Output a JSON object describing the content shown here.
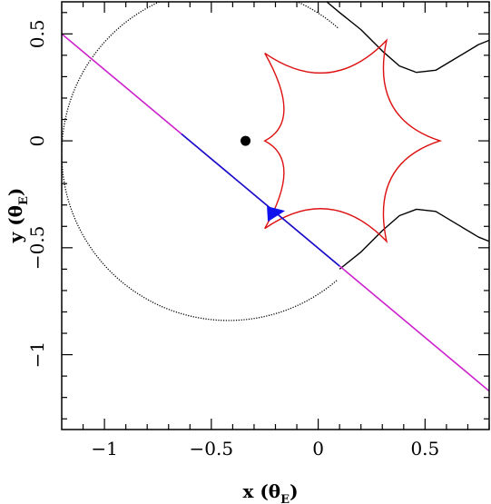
{
  "chart_data": {
    "type": "line",
    "xlim": [
      -1.2,
      0.8
    ],
    "ylim": [
      -1.35,
      0.65
    ],
    "x_ticks": [
      {
        "value": -1,
        "label": "−1"
      },
      {
        "value": -0.5,
        "label": "−0.5"
      },
      {
        "value": 0,
        "label": "0"
      },
      {
        "value": 0.5,
        "label": "0.5"
      }
    ],
    "y_ticks": [
      {
        "value": 0.5,
        "label": "0.5"
      },
      {
        "value": 0,
        "label": "0"
      },
      {
        "value": -0.5,
        "label": "−0.5"
      },
      {
        "value": -1,
        "label": "−1"
      }
    ],
    "xlabel": {
      "main": "x (θ",
      "sub": "E",
      "close": ")"
    },
    "ylabel": {
      "main": "y (θ",
      "sub": "E",
      "close": ")"
    },
    "grid": false,
    "colors": {
      "caustic": "#dd1111",
      "critical_curve": "#000000",
      "trajectory_outer": "#cc22cc",
      "trajectory_inner": "#1111cc",
      "marker": "#1111ee",
      "lens": "#000000"
    },
    "lens_point": {
      "x": -0.34,
      "y": 0.0
    },
    "source_marker": {
      "x": -0.21,
      "y": -0.34
    },
    "trajectory": {
      "p1": {
        "x": -1.2,
        "y": 0.5
      },
      "p2": {
        "x": 0.8,
        "y": -1.17
      },
      "inner_x_range": [
        -0.64,
        0.1
      ]
    },
    "caustic": [
      {
        "x": 0.57,
        "y": 0.0
      },
      {
        "x": 0.32,
        "y": 0.47
      },
      {
        "x": -0.25,
        "y": 0.41
      },
      {
        "x": -0.25,
        "y": 0.0
      },
      {
        "x": -0.25,
        "y": -0.41
      },
      {
        "x": 0.32,
        "y": -0.47
      }
    ],
    "critical_dotted_circle": {
      "cx": -0.42,
      "cy": -0.06,
      "r": 0.78,
      "x_min": -1.2,
      "x_max": 0.1
    },
    "critical_upper": [
      {
        "x": 0.04,
        "y": 0.65
      },
      {
        "x": 0.1,
        "y": 0.6
      },
      {
        "x": 0.2,
        "y": 0.52
      },
      {
        "x": 0.3,
        "y": 0.42
      },
      {
        "x": 0.38,
        "y": 0.35
      },
      {
        "x": 0.46,
        "y": 0.32
      },
      {
        "x": 0.55,
        "y": 0.33
      },
      {
        "x": 0.65,
        "y": 0.39
      },
      {
        "x": 0.75,
        "y": 0.45
      },
      {
        "x": 0.8,
        "y": 0.47
      }
    ],
    "critical_lower": [
      {
        "x": 0.1,
        "y": -0.6
      },
      {
        "x": 0.2,
        "y": -0.52
      },
      {
        "x": 0.3,
        "y": -0.42
      },
      {
        "x": 0.38,
        "y": -0.35
      },
      {
        "x": 0.46,
        "y": -0.32
      },
      {
        "x": 0.55,
        "y": -0.33
      },
      {
        "x": 0.65,
        "y": -0.39
      },
      {
        "x": 0.75,
        "y": -0.45
      },
      {
        "x": 0.8,
        "y": -0.47
      }
    ]
  }
}
